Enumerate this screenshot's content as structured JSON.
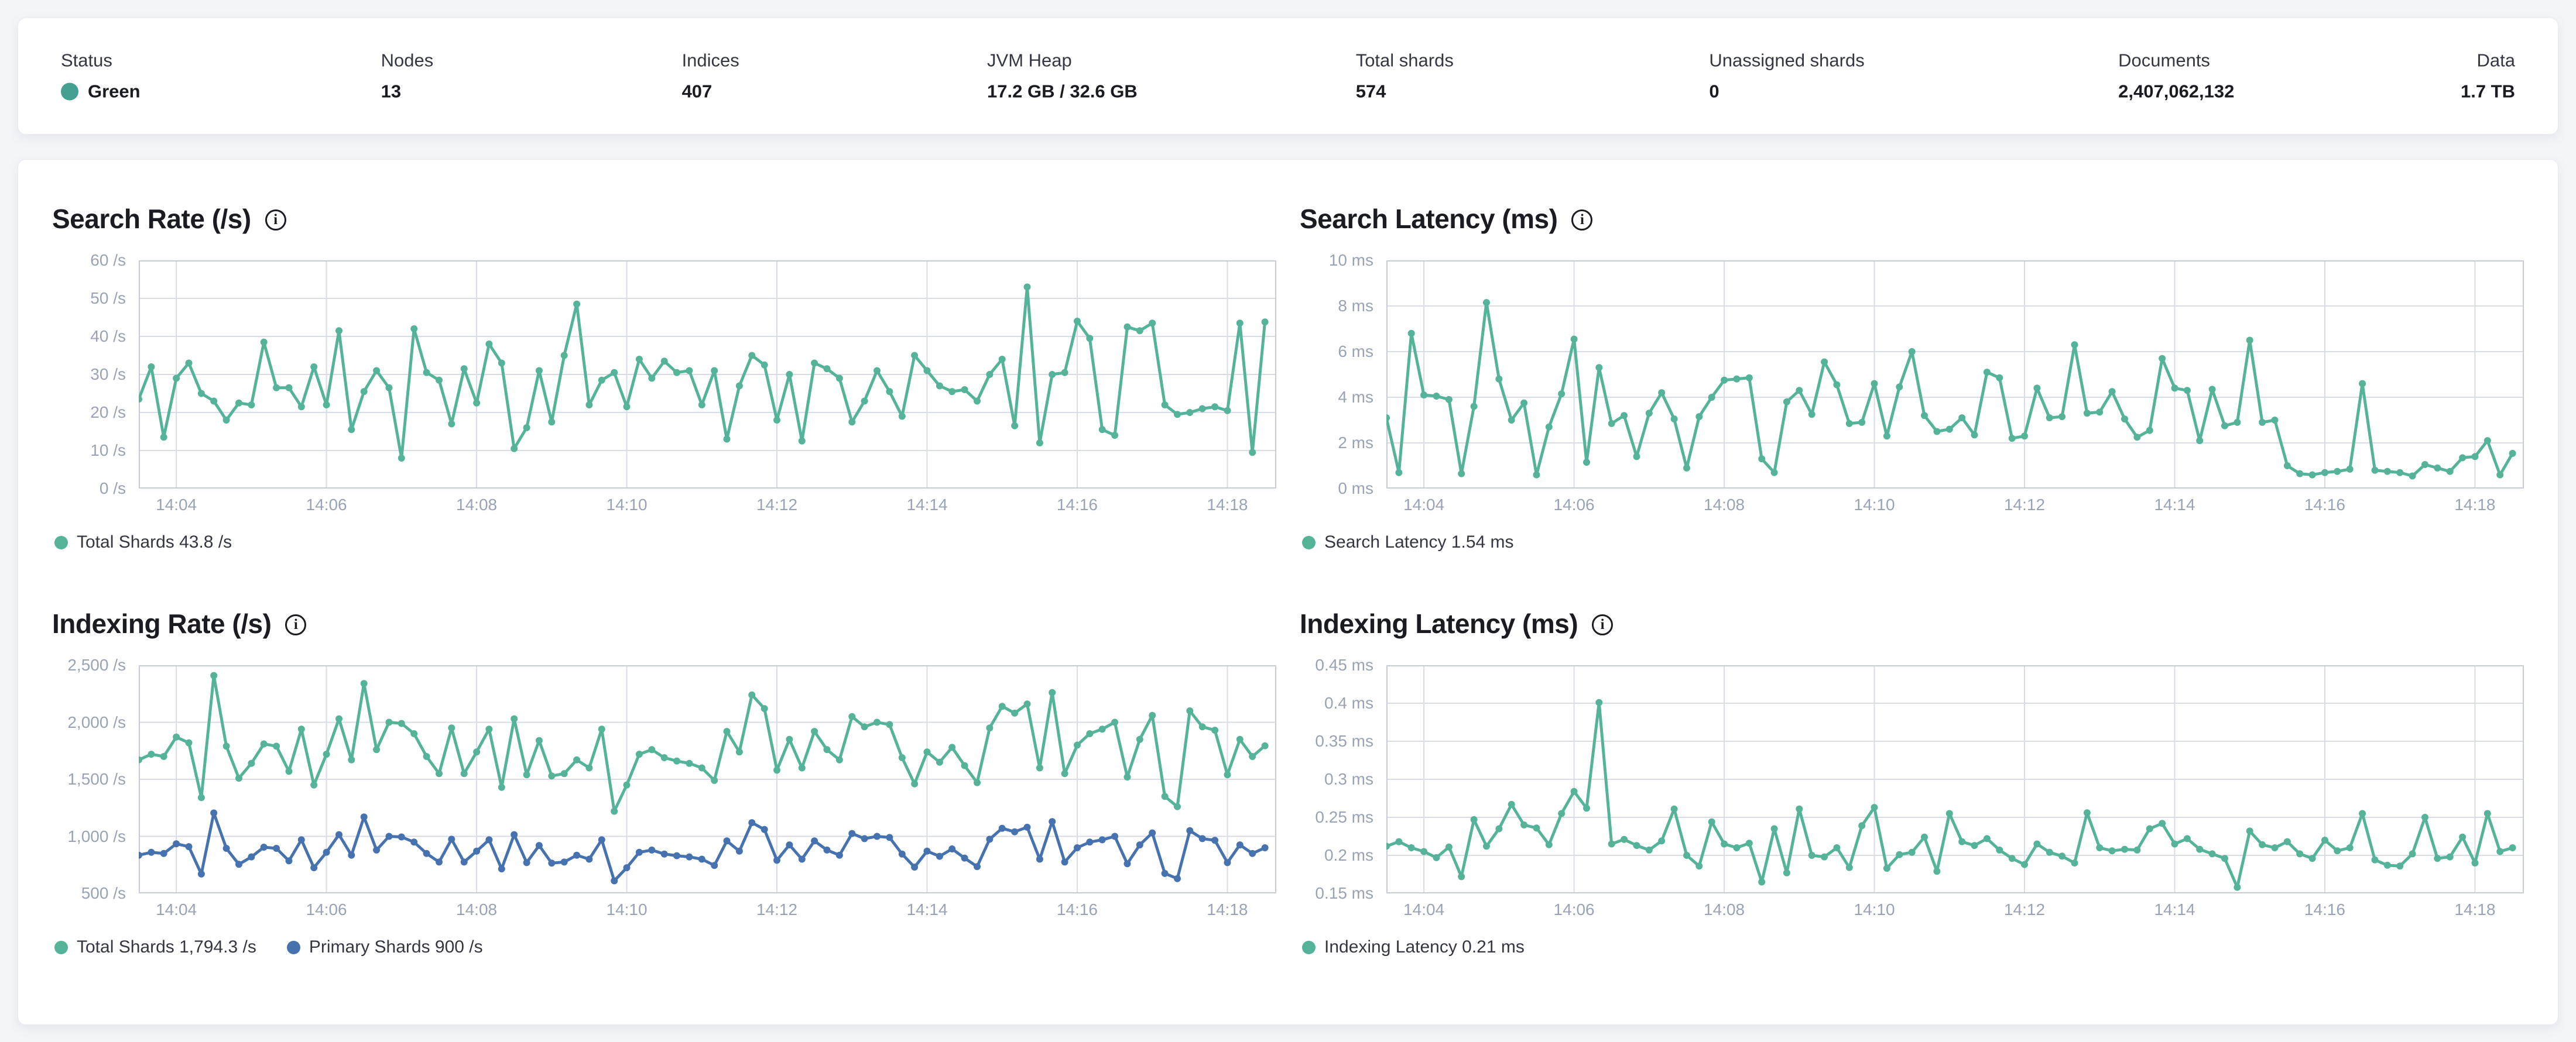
{
  "header": {
    "stats": [
      {
        "label": "Status",
        "value": "Green"
      },
      {
        "label": "Nodes",
        "value": "13"
      },
      {
        "label": "Indices",
        "value": "407"
      },
      {
        "label": "JVM Heap",
        "value": "17.2 GB / 32.6 GB"
      },
      {
        "label": "Total shards",
        "value": "574"
      },
      {
        "label": "Unassigned shards",
        "value": "0"
      },
      {
        "label": "Documents",
        "value": "2,407,062,132"
      },
      {
        "label": "Data",
        "value": "1.7 TB"
      }
    ]
  },
  "icons": {
    "info_glyph": "i"
  },
  "colors": {
    "page_background": "#f4f5f9",
    "card_background": "#ffffff",
    "status_green_dot": "#45a091",
    "series_teal": "#54b399",
    "series_blue": "#4673af",
    "tick_label": "#9aa3b5",
    "grid_line": "#d9dce4",
    "plot_border": "#c8ccd7",
    "title_text": "#1a1c21",
    "body_text": "#343741"
  },
  "chart_data": [
    {
      "id": "search-rate",
      "type": "line",
      "title": "Search Rate (/s)",
      "grid": true,
      "legend_position": "bottom",
      "x_ticks": [
        "14:04",
        "14:06",
        "14:08",
        "14:10",
        "14:12",
        "14:14",
        "14:16",
        "14:18"
      ],
      "ylim": [
        0,
        60
      ],
      "y_ticks": [
        {
          "label": "60 /s",
          "value": 60
        },
        {
          "label": "50 /s",
          "value": 50
        },
        {
          "label": "40 /s",
          "value": 40
        },
        {
          "label": "30 /s",
          "value": 30
        },
        {
          "label": "20 /s",
          "value": 20
        },
        {
          "label": "10 /s",
          "value": 10
        },
        {
          "label": "0 /s",
          "value": 0
        }
      ],
      "series": [
        {
          "name": "Total Shards",
          "current_value": "43.8 /s",
          "color": "#54b399",
          "values": [
            23.5,
            32,
            13.5,
            29,
            33,
            25,
            23,
            18,
            22.5,
            22,
            38.5,
            26.5,
            26.5,
            21.5,
            32,
            22,
            41.5,
            15.5,
            25.5,
            31,
            26.5,
            8,
            42,
            30.5,
            28.5,
            17,
            31.5,
            22.5,
            38,
            33,
            10.5,
            16,
            31,
            17.5,
            35,
            48.5,
            22,
            28.5,
            30.5,
            21.5,
            34,
            29,
            33.5,
            30.5,
            31,
            22,
            31,
            13,
            27,
            35,
            32.5,
            18,
            30,
            12.5,
            33,
            31.5,
            29,
            17.5,
            23,
            31,
            25.5,
            19,
            35,
            31,
            27,
            25.5,
            26,
            23,
            30,
            34,
            16.5,
            53,
            12,
            30,
            30.5,
            44,
            39.5,
            15.5,
            14,
            42.5,
            41.5,
            43.5,
            22,
            19.5,
            20,
            21,
            21.5,
            20.5,
            43.5,
            9.5,
            43.8
          ]
        }
      ]
    },
    {
      "id": "search-latency",
      "type": "line",
      "title": "Search Latency (ms)",
      "grid": true,
      "legend_position": "bottom",
      "x_ticks": [
        "14:04",
        "14:06",
        "14:08",
        "14:10",
        "14:12",
        "14:14",
        "14:16",
        "14:18"
      ],
      "ylim": [
        0,
        10
      ],
      "y_ticks": [
        {
          "label": "10 ms",
          "value": 10
        },
        {
          "label": "8 ms",
          "value": 8
        },
        {
          "label": "6 ms",
          "value": 6
        },
        {
          "label": "4 ms",
          "value": 4
        },
        {
          "label": "2 ms",
          "value": 2
        },
        {
          "label": "0 ms",
          "value": 0
        }
      ],
      "series": [
        {
          "name": "Search Latency",
          "current_value": "1.54 ms",
          "color": "#54b399",
          "values": [
            3.1,
            0.7,
            6.8,
            4.1,
            4.05,
            3.9,
            0.65,
            3.6,
            8.15,
            4.8,
            3.0,
            3.75,
            0.6,
            2.7,
            4.15,
            6.55,
            1.15,
            5.3,
            2.85,
            3.2,
            1.4,
            3.3,
            4.2,
            3.05,
            0.9,
            3.15,
            4.0,
            4.75,
            4.8,
            4.85,
            1.3,
            0.7,
            3.8,
            4.3,
            3.25,
            5.55,
            4.55,
            2.85,
            2.9,
            4.6,
            2.3,
            4.45,
            6.0,
            3.2,
            2.5,
            2.6,
            3.1,
            2.35,
            5.1,
            4.85,
            2.2,
            2.3,
            4.4,
            3.1,
            3.15,
            6.3,
            3.3,
            3.35,
            4.25,
            3.05,
            2.25,
            2.55,
            5.7,
            4.4,
            4.3,
            2.1,
            4.35,
            2.75,
            2.9,
            6.5,
            2.9,
            3.0,
            1.0,
            0.65,
            0.6,
            0.7,
            0.75,
            0.85,
            4.6,
            0.8,
            0.75,
            0.7,
            0.55,
            1.05,
            0.9,
            0.75,
            1.35,
            1.4,
            2.1,
            0.6,
            1.54
          ]
        }
      ]
    },
    {
      "id": "indexing-rate",
      "type": "line",
      "title": "Indexing Rate (/s)",
      "grid": true,
      "legend_position": "bottom",
      "x_ticks": [
        "14:04",
        "14:06",
        "14:08",
        "14:10",
        "14:12",
        "14:14",
        "14:16",
        "14:18"
      ],
      "ylim": [
        500,
        2500
      ],
      "y_ticks": [
        {
          "label": "2,500 /s",
          "value": 2500
        },
        {
          "label": "2,000 /s",
          "value": 2000
        },
        {
          "label": "1,500 /s",
          "value": 1500
        },
        {
          "label": "1,000 /s",
          "value": 1000
        },
        {
          "label": "500 /s",
          "value": 500
        }
      ],
      "series": [
        {
          "name": "Total Shards",
          "current_value": "1,794.3 /s",
          "color": "#54b399",
          "values": [
            1670,
            1720,
            1700,
            1870,
            1820,
            1340,
            2410,
            1790,
            1510,
            1640,
            1810,
            1790,
            1570,
            1940,
            1450,
            1720,
            2030,
            1670,
            2340,
            1760,
            2000,
            1990,
            1900,
            1700,
            1550,
            1950,
            1550,
            1740,
            1940,
            1430,
            2030,
            1540,
            1840,
            1530,
            1550,
            1670,
            1600,
            1940,
            1220,
            1450,
            1720,
            1760,
            1690,
            1660,
            1640,
            1600,
            1490,
            1920,
            1740,
            2240,
            2120,
            1580,
            1850,
            1600,
            1920,
            1760,
            1670,
            2050,
            1960,
            2000,
            1980,
            1690,
            1460,
            1740,
            1650,
            1780,
            1620,
            1470,
            1950,
            2140,
            2080,
            2160,
            1600,
            2260,
            1550,
            1800,
            1900,
            1940,
            2000,
            1520,
            1850,
            2060,
            1350,
            1260,
            2100,
            1960,
            1930,
            1540,
            1850,
            1700,
            1794
          ]
        },
        {
          "name": "Primary Shards",
          "current_value": "900 /s",
          "color": "#4673af",
          "values": [
            835,
            860,
            850,
            935,
            910,
            670,
            1205,
            895,
            755,
            820,
            905,
            895,
            785,
            970,
            725,
            860,
            1015,
            835,
            1170,
            880,
            1000,
            995,
            950,
            850,
            775,
            975,
            775,
            870,
            970,
            715,
            1015,
            770,
            920,
            765,
            775,
            835,
            800,
            970,
            610,
            725,
            860,
            880,
            845,
            830,
            820,
            800,
            745,
            960,
            870,
            1120,
            1060,
            790,
            925,
            800,
            960,
            880,
            835,
            1025,
            980,
            1000,
            990,
            845,
            730,
            870,
            825,
            890,
            810,
            735,
            975,
            1070,
            1040,
            1080,
            800,
            1130,
            775,
            900,
            950,
            970,
            1000,
            760,
            925,
            1030,
            675,
            630,
            1050,
            980,
            965,
            770,
            925,
            850,
            900
          ]
        }
      ]
    },
    {
      "id": "indexing-latency",
      "type": "line",
      "title": "Indexing Latency (ms)",
      "grid": true,
      "legend_position": "bottom",
      "x_ticks": [
        "14:04",
        "14:06",
        "14:08",
        "14:10",
        "14:12",
        "14:14",
        "14:16",
        "14:18"
      ],
      "ylim": [
        0.15,
        0.45
      ],
      "y_ticks": [
        {
          "label": "0.45 ms",
          "value": 0.45
        },
        {
          "label": "0.4 ms",
          "value": 0.4
        },
        {
          "label": "0.35 ms",
          "value": 0.35
        },
        {
          "label": "0.3 ms",
          "value": 0.3
        },
        {
          "label": "0.25 ms",
          "value": 0.25
        },
        {
          "label": "0.2 ms",
          "value": 0.2
        },
        {
          "label": "0.15 ms",
          "value": 0.15
        }
      ],
      "series": [
        {
          "name": "Indexing Latency",
          "current_value": "0.21 ms",
          "color": "#54b399",
          "values": [
            0.212,
            0.218,
            0.21,
            0.205,
            0.197,
            0.211,
            0.172,
            0.247,
            0.212,
            0.235,
            0.267,
            0.24,
            0.236,
            0.214,
            0.255,
            0.284,
            0.262,
            0.401,
            0.215,
            0.221,
            0.213,
            0.207,
            0.219,
            0.261,
            0.2,
            0.186,
            0.244,
            0.215,
            0.21,
            0.216,
            0.165,
            0.235,
            0.177,
            0.261,
            0.2,
            0.198,
            0.21,
            0.184,
            0.239,
            0.263,
            0.183,
            0.201,
            0.204,
            0.224,
            0.179,
            0.255,
            0.218,
            0.213,
            0.222,
            0.207,
            0.196,
            0.188,
            0.215,
            0.204,
            0.199,
            0.19,
            0.256,
            0.21,
            0.206,
            0.208,
            0.207,
            0.235,
            0.242,
            0.215,
            0.222,
            0.208,
            0.202,
            0.196,
            0.158,
            0.232,
            0.214,
            0.21,
            0.218,
            0.202,
            0.196,
            0.22,
            0.206,
            0.21,
            0.255,
            0.194,
            0.187,
            0.186,
            0.202,
            0.25,
            0.196,
            0.198,
            0.224,
            0.19,
            0.255,
            0.205,
            0.21
          ]
        }
      ]
    }
  ]
}
